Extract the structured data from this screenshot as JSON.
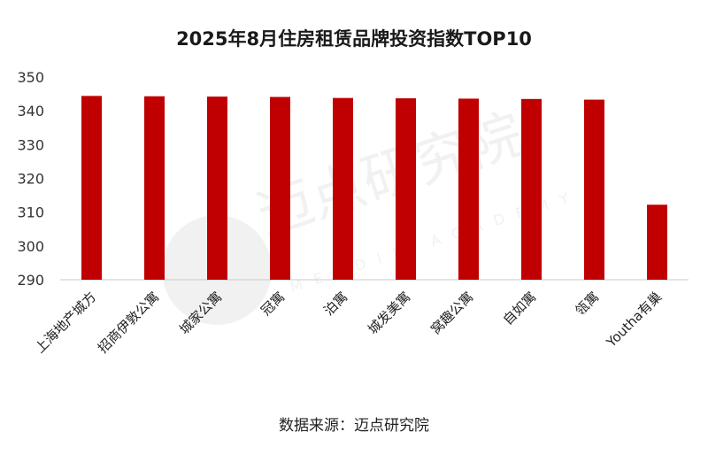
{
  "chart_data": {
    "type": "bar",
    "title": "2025年8月住房租赁品牌投资指数TOP10",
    "categories": [
      "上海地产城方",
      "招商伊敦公寓",
      "城家公寓",
      "冠寓",
      "泊寓",
      "城发美寓",
      "窝趣公寓",
      "自如寓",
      "瓴寓",
      "Youtha有巢"
    ],
    "values": [
      344.4,
      344.3,
      344.2,
      344.1,
      343.8,
      343.7,
      343.6,
      343.5,
      343.3,
      312.2
    ],
    "xlabel": "",
    "ylabel": "",
    "ylim": [
      290,
      350
    ],
    "yticks": [
      290,
      300,
      310,
      320,
      330,
      340,
      350
    ],
    "grid": false,
    "legend": "none",
    "bar_color": "#C00000"
  },
  "source_text": "数据来源：迈点研究院",
  "watermark": {
    "text": "迈点研究院",
    "subtext": "MEADIN ACADEMY"
  }
}
